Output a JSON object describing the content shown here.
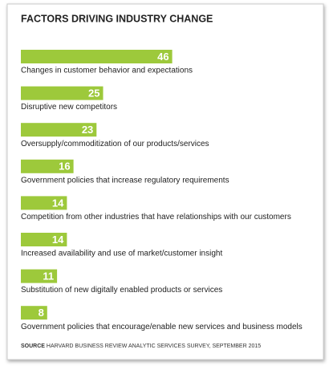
{
  "chart_data": {
    "type": "bar",
    "orientation": "horizontal",
    "title": "FACTORS DRIVING INDUSTRY CHANGE",
    "categories": [
      "Changes in customer behavior and expectations",
      "Disruptive new competitors",
      "Oversupply/commoditization of our products/services",
      "Government policies that increase regulatory requirements",
      "Competition from other industries that have relationships with our customers",
      "Increased availability and use of market/customer insight",
      "Substitution of new digitally enabled products or services",
      "Government policies that encourage/enable new services and business models"
    ],
    "values": [
      46,
      25,
      23,
      16,
      14,
      14,
      11,
      8
    ],
    "color": "#9dc93b",
    "source_label": "SOURCE",
    "source": "HARVARD BUSINESS REVIEW ANALYTIC SERVICES SURVEY, SEPTEMBER 2015"
  }
}
